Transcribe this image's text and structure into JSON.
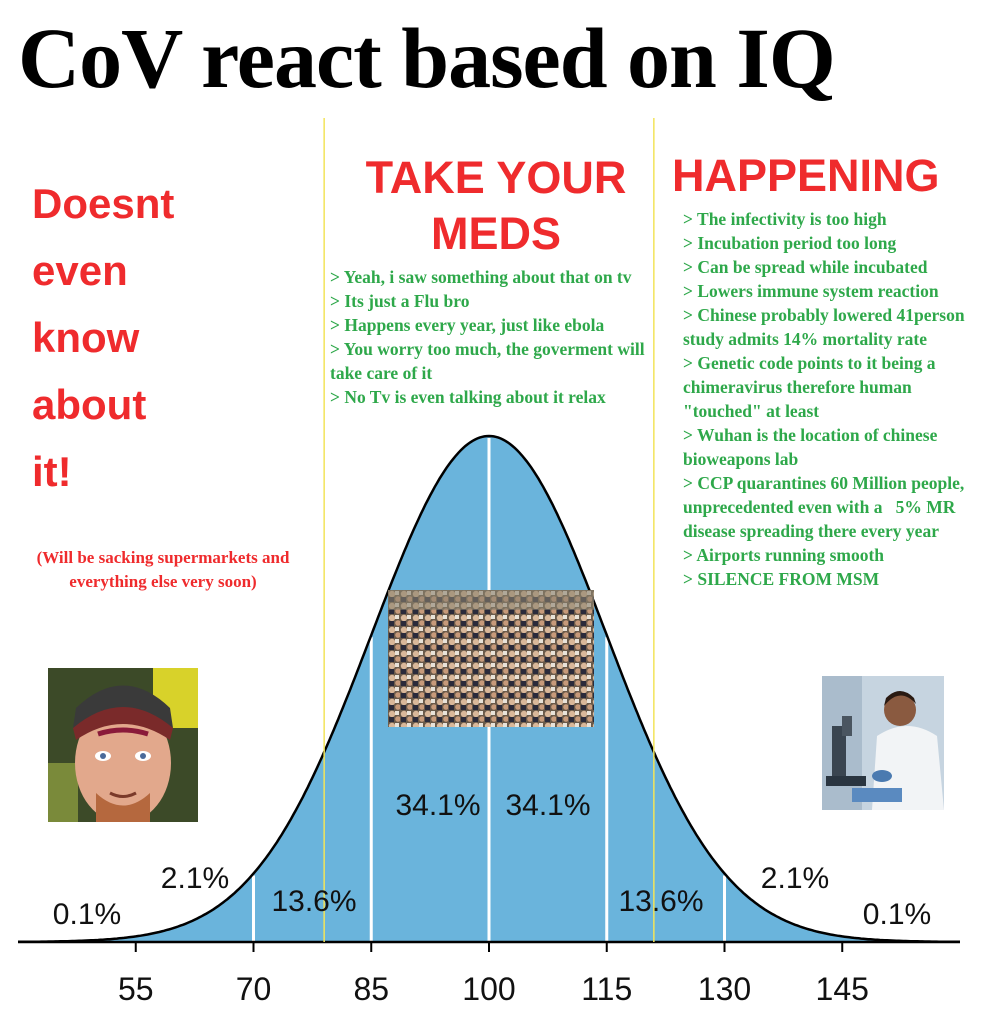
{
  "title": "CoV react based on IQ",
  "left_heading": [
    "Doesnt",
    "even",
    "know",
    "about",
    "it!"
  ],
  "left_note": "(Will be sacking supermarkets and everything else very soon)",
  "mid_heading": "TAKE YOUR MEDS",
  "right_heading": "HAPPENING",
  "mid_list": [
    "> Yeah, i saw something about that on tv",
    "> Its just a Flu bro",
    "> Happens every year, just like ebola",
    "> You worry too much, the goverment will take care of it",
    "> No Tv is even talking about it relax"
  ],
  "right_list": [
    "> The infectivity is too high",
    "> Incubation period too long",
    "> Can be spread while incubated",
    "> Lowers immune system reaction",
    "> Chinese probably lowered 41person study admits 14% mortality rate",
    "> Genetic code points to it being a chimeravirus therefore human \"touched\" at least",
    "> Wuhan is the location of chinese bioweapons lab",
    "> CCP quarantines 60 Million people, unprecedented even with a   5% MR disease spreading there every year",
    "> Airports running smooth",
    "> SILENCE FROM MSM"
  ],
  "colors": {
    "title": "#000000",
    "heading_red": "#ef2b2d",
    "list_green": "#2ea84a",
    "curve_fill": "#6ab4dc",
    "divider_yellow": "#f2e45a"
  },
  "images": [
    "face-photo",
    "crowd-photo",
    "scientist-photo"
  ],
  "chart_data": {
    "type": "area",
    "distribution": "normal",
    "mean": 100,
    "sd": 15,
    "x_ticks": [
      55,
      70,
      85,
      100,
      115,
      130,
      145
    ],
    "xlim": [
      45,
      155
    ],
    "regions": [
      {
        "from": 45,
        "to": 55,
        "label": "0.1%"
      },
      {
        "from": 55,
        "to": 70,
        "label": "2.1%"
      },
      {
        "from": 70,
        "to": 85,
        "label": "13.6%"
      },
      {
        "from": 85,
        "to": 100,
        "label": "34.1%"
      },
      {
        "from": 100,
        "to": 115,
        "label": "34.1%"
      },
      {
        "from": 115,
        "to": 130,
        "label": "13.6%"
      },
      {
        "from": 130,
        "to": 145,
        "label": "2.1%"
      },
      {
        "from": 145,
        "to": 155,
        "label": "0.1%"
      }
    ],
    "dividers": [
      70,
      85,
      100,
      115,
      130
    ],
    "section_bounds": [
      79,
      121
    ]
  }
}
